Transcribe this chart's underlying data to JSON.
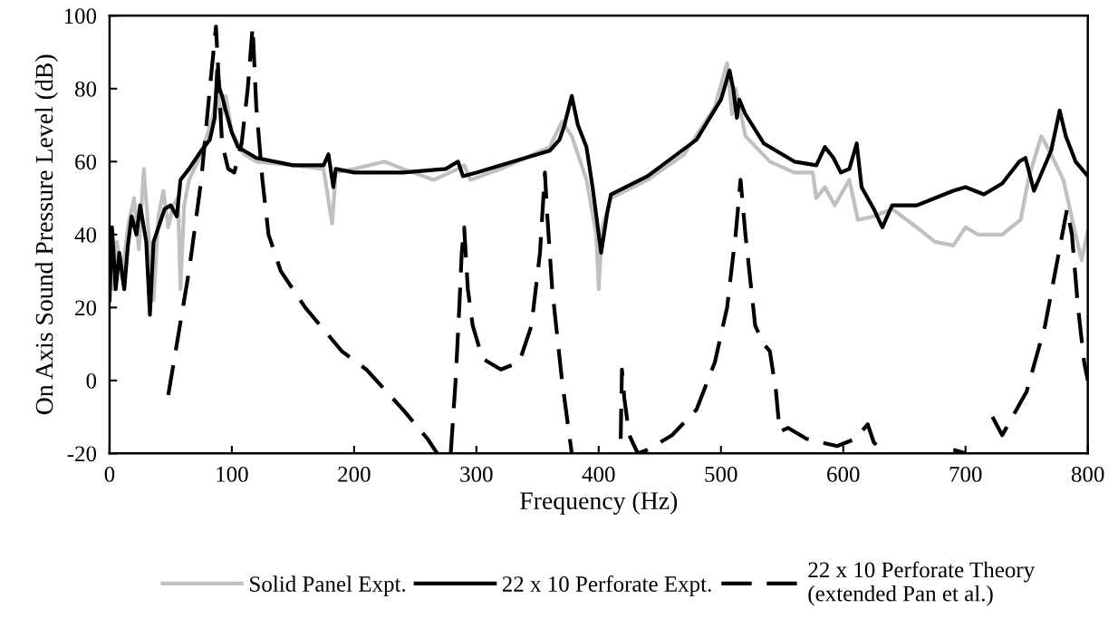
{
  "chart_data": {
    "type": "line",
    "xlabel": "Frequency (Hz)",
    "ylabel": "On Axis Sound Pressure Level (dB)",
    "xlim": [
      0,
      800
    ],
    "xticks": [
      0,
      100,
      200,
      300,
      400,
      500,
      600,
      700,
      800
    ],
    "ylim": [
      -20,
      100
    ],
    "yticks": [
      -20,
      0,
      20,
      40,
      60,
      80,
      100
    ],
    "grid": false,
    "legend": "bottom",
    "marker": "none",
    "series": [
      {
        "name": "Solid Panel Expt.",
        "color": "#c0c0c0",
        "line_style": "solid",
        "x": [
          0,
          3,
          6,
          10,
          15,
          20,
          24,
          28,
          32,
          36,
          40,
          44,
          48,
          52,
          56,
          58,
          61,
          65,
          75,
          85,
          88,
          91,
          95,
          100,
          110,
          120,
          150,
          175,
          182,
          185,
          200,
          225,
          240,
          265,
          285,
          290,
          295,
          320,
          360,
          370,
          378,
          390,
          398,
          400,
          403,
          410,
          440,
          470,
          495,
          505,
          509,
          512,
          520,
          540,
          560,
          575,
          578,
          585,
          593,
          605,
          612,
          625,
          640,
          660,
          675,
          690,
          700,
          710,
          730,
          745,
          752,
          762,
          770,
          780,
          790,
          795,
          800
        ],
        "values": [
          30,
          25,
          38,
          28,
          42,
          50,
          36,
          58,
          40,
          22,
          45,
          52,
          42,
          48,
          50,
          25,
          48,
          55,
          62,
          73,
          80,
          72,
          78,
          68,
          62,
          60,
          59,
          58,
          43,
          57,
          58,
          60,
          58,
          55,
          58,
          59,
          55,
          58,
          64,
          71,
          67,
          55,
          40,
          25,
          42,
          50,
          55,
          62,
          75,
          87,
          73,
          80,
          67,
          60,
          57,
          57,
          50,
          53,
          48,
          55,
          44,
          45,
          47,
          42,
          38,
          37,
          42,
          40,
          40,
          44,
          56,
          67,
          62,
          55,
          40,
          33,
          41
        ]
      },
      {
        "name": "22 x 10 Perforate Expt.",
        "color": "#000000",
        "line_style": "solid",
        "x": [
          0,
          2,
          5,
          8,
          12,
          15,
          18,
          22,
          25,
          30,
          33,
          36,
          40,
          45,
          50,
          55,
          58,
          65,
          75,
          82,
          86,
          88,
          90,
          92,
          95,
          100,
          105,
          110,
          120,
          150,
          175,
          179,
          183,
          185,
          200,
          240,
          275,
          285,
          289,
          300,
          340,
          360,
          368,
          372,
          378,
          383,
          390,
          395,
          402,
          407,
          410,
          440,
          480,
          500,
          507,
          510,
          513,
          515,
          520,
          535,
          560,
          578,
          585,
          592,
          598,
          605,
          611,
          615,
          625,
          632,
          636,
          640,
          660,
          690,
          700,
          715,
          730,
          744,
          749,
          756,
          770,
          777,
          782,
          790,
          800
        ],
        "values": [
          22,
          42,
          25,
          35,
          25,
          37,
          45,
          40,
          48,
          38,
          18,
          38,
          42,
          47,
          48,
          45,
          55,
          58,
          63,
          66,
          72,
          85,
          80,
          78,
          74,
          68,
          64,
          63,
          61,
          59,
          59,
          62,
          53,
          58,
          57,
          57,
          58,
          60,
          56,
          57,
          61,
          63,
          66,
          70,
          78,
          70,
          64,
          53,
          35,
          46,
          51,
          56,
          66,
          77,
          85,
          80,
          72,
          77,
          73,
          65,
          60,
          59,
          64,
          61,
          57,
          58,
          65,
          53,
          47,
          42,
          45,
          48,
          48,
          52,
          53,
          51,
          54,
          60,
          61,
          52,
          63,
          74,
          67,
          60,
          56
        ]
      },
      {
        "name": "22 x 10 Perforate Theory\n(extended Pan et al.)",
        "color": "#000000",
        "line_style": "dashed",
        "x": [
          48,
          55,
          65,
          75,
          82,
          87,
          92,
          97,
          102,
          108,
          113,
          117,
          120,
          125,
          130,
          140,
          160,
          190,
          210,
          240,
          260,
          268,
          273,
          279,
          283,
          286,
          288,
          290,
          293,
          297,
          305,
          320,
          335,
          345,
          352,
          356,
          358,
          362,
          370,
          378,
          398,
          418,
          419,
          421,
          425,
          432,
          440,
          460,
          480,
          495,
          505,
          512,
          516,
          520,
          528,
          535,
          540,
          545,
          548,
          555,
          570,
          595,
          610,
          620,
          625,
          635,
          680,
          690,
          700,
          720,
          722,
          730,
          750,
          765,
          778,
          783,
          787,
          792,
          797,
          800
        ],
        "values": [
          -4,
          10,
          30,
          55,
          80,
          97,
          65,
          58,
          57,
          65,
          80,
          97,
          75,
          55,
          40,
          30,
          20,
          8,
          3,
          -8,
          -16,
          -20,
          null,
          -20,
          0,
          20,
          35,
          42,
          25,
          15,
          6,
          3,
          5,
          15,
          35,
          57,
          45,
          25,
          0,
          -20,
          null,
          -16,
          3,
          -5,
          -15,
          -20,
          -19,
          -15,
          -8,
          5,
          20,
          40,
          55,
          40,
          15,
          10,
          8,
          -3,
          -14,
          -13,
          -16,
          -18,
          -16,
          -12,
          -17,
          -20,
          null,
          -19,
          -20,
          null,
          -10,
          -15,
          -3,
          15,
          38,
          47,
          40,
          20,
          5,
          0
        ]
      }
    ]
  }
}
